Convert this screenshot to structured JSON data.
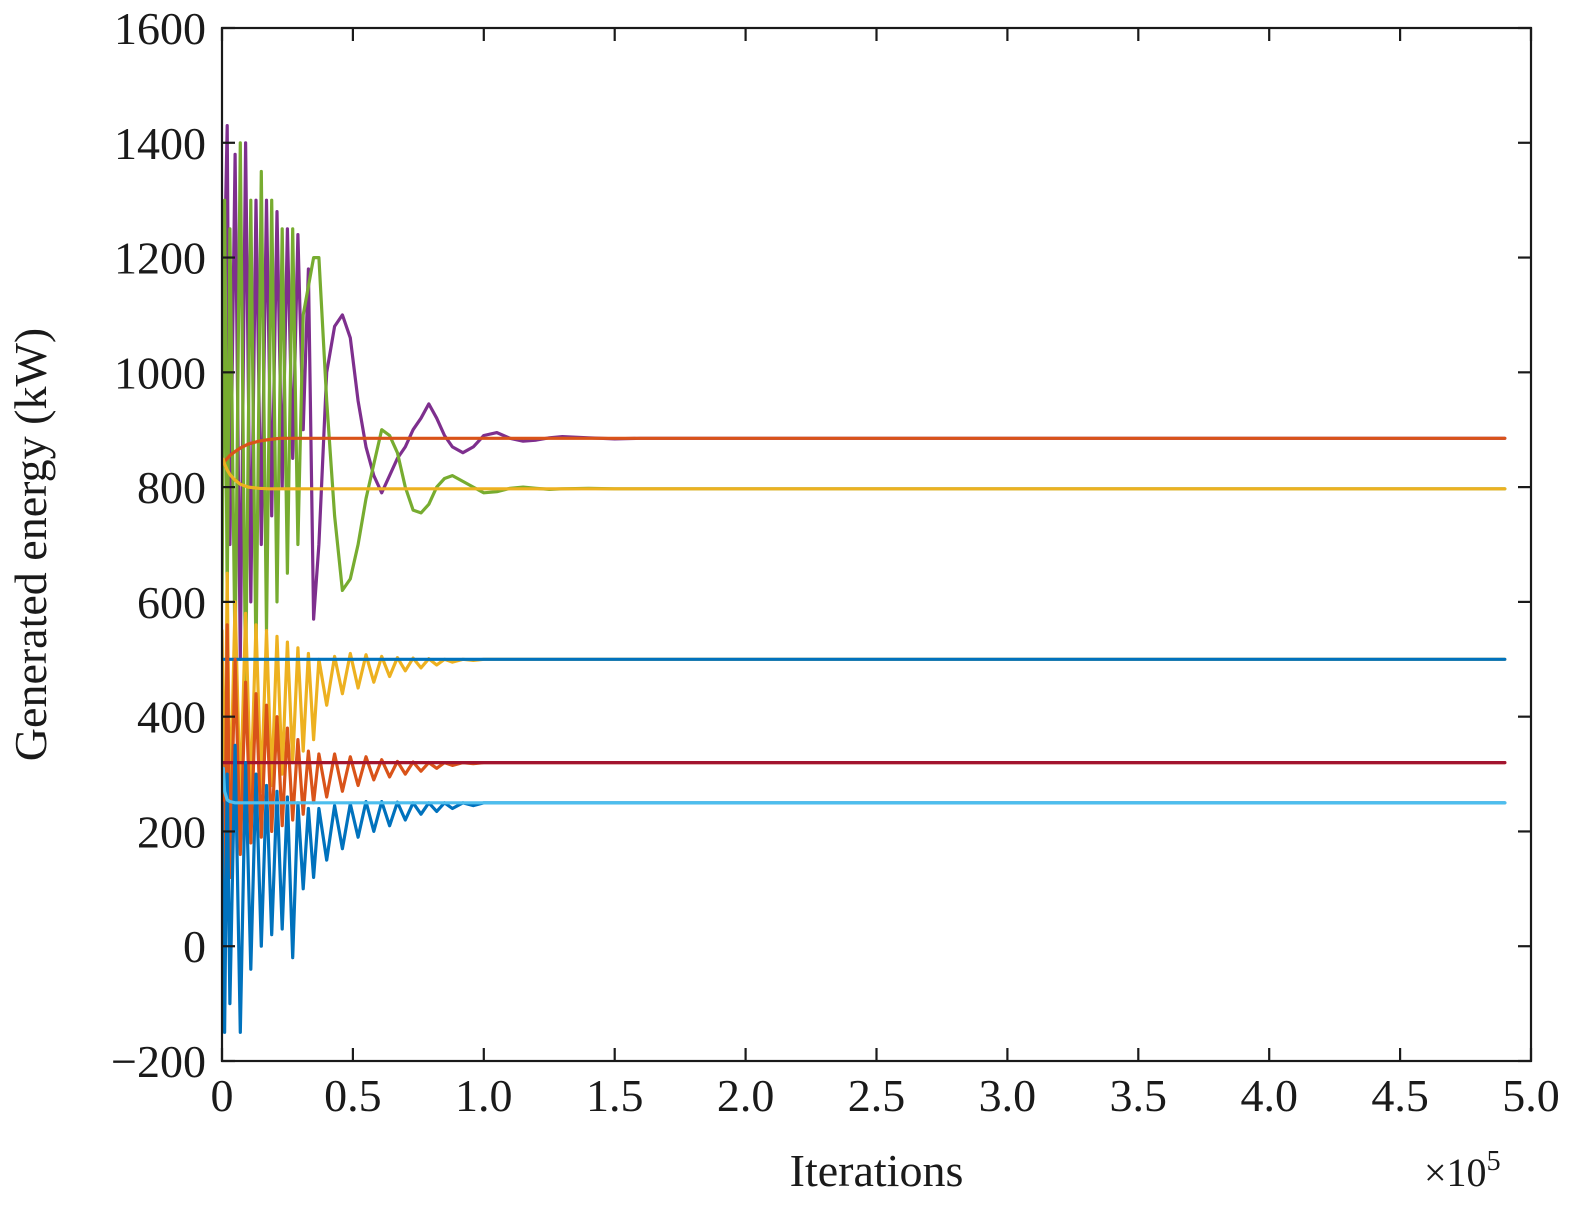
{
  "chart_data": {
    "type": "line",
    "xlabel": "Iterations",
    "ylabel": "Generated energy (kW)",
    "x_multiplier_label": "×10",
    "x_multiplier_exponent": "5",
    "xlim": [
      0,
      5.0
    ],
    "ylim": [
      -200,
      1600
    ],
    "x_ticks": [
      0,
      0.5,
      1.0,
      1.5,
      2.0,
      2.5,
      3.0,
      3.5,
      4.0,
      4.5,
      5.0
    ],
    "x_tick_labels": [
      "0",
      "0.5",
      "1.0",
      "1.5",
      "2.0",
      "2.5",
      "3.0",
      "3.5",
      "4.0",
      "4.5",
      "5.0"
    ],
    "y_ticks": [
      -200,
      0,
      200,
      400,
      600,
      800,
      1000,
      1200,
      1400,
      1600
    ],
    "y_tick_labels": [
      "−200",
      "0",
      "200",
      "400",
      "600",
      "800",
      "1000",
      "1200",
      "1400",
      "1600"
    ],
    "grid": false,
    "legend": "none",
    "series": [
      {
        "color": "#7E2F8E",
        "x": [
          0,
          0.01,
          0.02,
          0.03,
          0.05,
          0.07,
          0.09,
          0.11,
          0.13,
          0.15,
          0.17,
          0.19,
          0.21,
          0.23,
          0.25,
          0.27,
          0.29,
          0.31,
          0.33,
          0.35,
          0.37,
          0.4,
          0.43,
          0.46,
          0.49,
          0.52,
          0.55,
          0.58,
          0.61,
          0.64,
          0.67,
          0.7,
          0.73,
          0.76,
          0.79,
          0.82,
          0.85,
          0.88,
          0.92,
          0.96,
          1.0,
          1.05,
          1.1,
          1.15,
          1.2,
          1.25,
          1.3,
          1.4,
          1.5,
          1.6,
          1.8,
          2.0,
          4.9
        ],
        "y": [
          700,
          1200,
          1430,
          700,
          1380,
          500,
          1400,
          600,
          1300,
          700,
          1300,
          750,
          1280,
          800,
          1250,
          850,
          1240,
          900,
          1180,
          570,
          700,
          1000,
          1080,
          1100,
          1060,
          950,
          870,
          820,
          790,
          820,
          850,
          870,
          900,
          920,
          945,
          920,
          890,
          870,
          860,
          870,
          890,
          895,
          885,
          880,
          882,
          886,
          888,
          886,
          884,
          885,
          885,
          885,
          885
        ]
      },
      {
        "color": "#77AC30",
        "x": [
          0,
          0.01,
          0.02,
          0.03,
          0.05,
          0.07,
          0.09,
          0.11,
          0.13,
          0.15,
          0.17,
          0.19,
          0.21,
          0.23,
          0.25,
          0.27,
          0.29,
          0.31,
          0.33,
          0.35,
          0.37,
          0.4,
          0.43,
          0.46,
          0.49,
          0.52,
          0.55,
          0.58,
          0.61,
          0.64,
          0.67,
          0.7,
          0.73,
          0.76,
          0.79,
          0.82,
          0.85,
          0.88,
          0.92,
          0.96,
          1.0,
          1.05,
          1.1,
          1.15,
          1.2,
          1.25,
          1.3,
          1.4,
          1.5,
          1.6,
          1.8,
          2.0,
          4.9
        ],
        "y": [
          600,
          1300,
          600,
          1250,
          500,
          1400,
          450,
          1300,
          500,
          1350,
          550,
          1300,
          600,
          1250,
          650,
          1250,
          700,
          1100,
          1150,
          1200,
          1200,
          950,
          750,
          620,
          640,
          700,
          780,
          840,
          900,
          890,
          860,
          800,
          760,
          755,
          770,
          800,
          815,
          820,
          810,
          800,
          790,
          792,
          798,
          800,
          798,
          796,
          797,
          798,
          797,
          797,
          797,
          797,
          797
        ]
      },
      {
        "color": "#D95319",
        "x": [
          0,
          0.005,
          0.01,
          0.02,
          0.03,
          0.05,
          0.07,
          0.1,
          0.14,
          0.18,
          0.22,
          0.26,
          0.3,
          0.35,
          0.4,
          0.5,
          0.6,
          0.8,
          1.0,
          1.5,
          2.0,
          4.9
        ],
        "y": [
          840,
          840,
          845,
          850,
          855,
          862,
          868,
          875,
          880,
          883,
          885,
          885,
          885,
          885,
          885,
          885,
          885,
          885,
          885,
          885,
          885,
          885
        ]
      },
      {
        "color": "#EDB120",
        "x": [
          0,
          0.005,
          0.01,
          0.02,
          0.03,
          0.05,
          0.07,
          0.1,
          0.14,
          0.18,
          0.22,
          0.26,
          0.3,
          0.35,
          0.4,
          0.5,
          0.6,
          0.8,
          1.0,
          1.5,
          2.0,
          4.9
        ],
        "y": [
          850,
          848,
          840,
          830,
          822,
          812,
          805,
          800,
          798,
          797,
          797,
          797,
          797,
          797,
          797,
          797,
          797,
          797,
          797,
          797,
          797,
          797
        ]
      },
      {
        "color": "#EDB120",
        "x": [
          0,
          0.01,
          0.02,
          0.03,
          0.05,
          0.07,
          0.09,
          0.11,
          0.13,
          0.15,
          0.17,
          0.19,
          0.21,
          0.23,
          0.25,
          0.27,
          0.29,
          0.31,
          0.33,
          0.35,
          0.37,
          0.4,
          0.43,
          0.46,
          0.49,
          0.52,
          0.55,
          0.58,
          0.61,
          0.64,
          0.67,
          0.7,
          0.73,
          0.76,
          0.79,
          0.82,
          0.85,
          0.88,
          0.92,
          0.96,
          1.0,
          1.1,
          1.2,
          1.5,
          2.0,
          4.9
        ],
        "y": [
          550,
          200,
          650,
          220,
          600,
          250,
          580,
          260,
          560,
          270,
          550,
          280,
          540,
          300,
          530,
          320,
          520,
          340,
          510,
          360,
          500,
          420,
          505,
          440,
          510,
          450,
          508,
          460,
          505,
          470,
          503,
          480,
          502,
          485,
          501,
          490,
          500,
          495,
          500,
          498,
          500,
          500,
          500,
          500,
          500,
          500
        ]
      },
      {
        "color": "#0072BD",
        "x": [
          0,
          0.03,
          0.06,
          0.1,
          0.2,
          0.5,
          1.0,
          2.0,
          4.9
        ],
        "y": [
          500,
          500,
          500,
          500,
          500,
          500,
          500,
          500,
          500
        ]
      },
      {
        "color": "#D95319",
        "x": [
          0,
          0.01,
          0.02,
          0.03,
          0.05,
          0.07,
          0.09,
          0.11,
          0.13,
          0.15,
          0.17,
          0.19,
          0.21,
          0.23,
          0.25,
          0.27,
          0.29,
          0.31,
          0.33,
          0.35,
          0.37,
          0.4,
          0.43,
          0.46,
          0.49,
          0.52,
          0.55,
          0.58,
          0.61,
          0.64,
          0.67,
          0.7,
          0.73,
          0.76,
          0.79,
          0.82,
          0.85,
          0.88,
          0.92,
          0.96,
          1.0,
          1.1,
          1.2,
          1.5,
          2.0,
          4.9
        ],
        "y": [
          320,
          100,
          560,
          120,
          500,
          160,
          460,
          180,
          440,
          190,
          420,
          200,
          400,
          210,
          380,
          220,
          360,
          230,
          340,
          250,
          335,
          260,
          335,
          270,
          330,
          280,
          330,
          290,
          325,
          295,
          322,
          300,
          321,
          305,
          320,
          310,
          320,
          315,
          320,
          318,
          320,
          320,
          320,
          320,
          320,
          320
        ]
      },
      {
        "color": "#A2142F",
        "x": [
          0,
          0.03,
          0.06,
          0.1,
          0.2,
          0.5,
          1.0,
          2.0,
          4.9
        ],
        "y": [
          320,
          320,
          320,
          320,
          320,
          320,
          320,
          320,
          320
        ]
      },
      {
        "color": "#0072BD",
        "x": [
          0,
          0.01,
          0.02,
          0.03,
          0.05,
          0.07,
          0.09,
          0.11,
          0.13,
          0.15,
          0.17,
          0.19,
          0.21,
          0.23,
          0.25,
          0.27,
          0.29,
          0.31,
          0.33,
          0.35,
          0.37,
          0.4,
          0.43,
          0.46,
          0.49,
          0.52,
          0.55,
          0.58,
          0.61,
          0.64,
          0.67,
          0.7,
          0.73,
          0.76,
          0.79,
          0.82,
          0.85,
          0.88,
          0.92,
          0.96,
          1.0,
          1.1,
          1.2,
          1.5,
          2.0,
          4.9
        ],
        "y": [
          250,
          -150,
          300,
          -100,
          350,
          -150,
          320,
          -40,
          300,
          0,
          280,
          20,
          270,
          30,
          260,
          -20,
          250,
          100,
          240,
          120,
          240,
          150,
          245,
          170,
          248,
          190,
          252,
          200,
          252,
          210,
          251,
          220,
          250,
          230,
          250,
          235,
          250,
          240,
          250,
          245,
          250,
          250,
          250,
          250,
          250,
          250
        ]
      },
      {
        "color": "#4DBEEE",
        "x": [
          0,
          0.005,
          0.01,
          0.02,
          0.03,
          0.05,
          0.1,
          0.2,
          0.5,
          1.0,
          2.0,
          4.9
        ],
        "y": [
          310,
          310,
          270,
          255,
          252,
          250,
          250,
          250,
          250,
          250,
          250,
          250
        ]
      }
    ]
  }
}
